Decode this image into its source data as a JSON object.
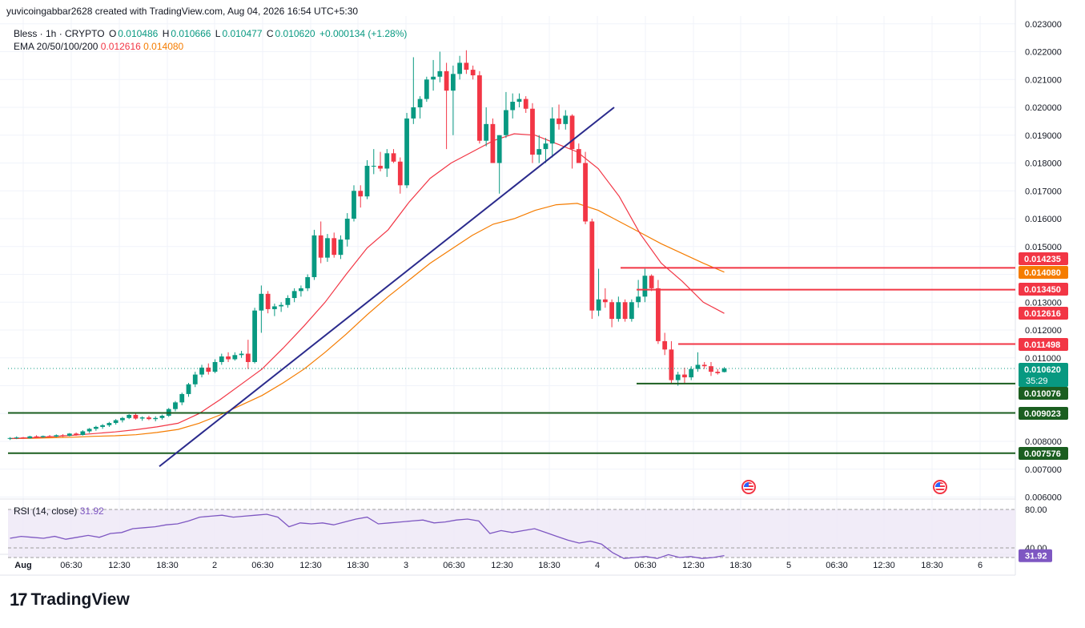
{
  "header": {
    "credit": "yuvicoingabbar2628 created with TradingView.com, Aug 04, 2026 16:54 UTC+5:30",
    "symbol": "Bless · 1h · CRYPTO",
    "o_label": "O",
    "o_value": "0.010486",
    "h_label": "H",
    "h_value": "0.010666",
    "l_label": "L",
    "l_value": "0.010477",
    "c_label": "C",
    "c_value": "0.010620",
    "change": "+0.000134 (+1.28%)",
    "ema_label": "EMA 20/50/100/200",
    "ema1": "0.012616",
    "ema2": "0.014080"
  },
  "rsi": {
    "label": "RSI (14, close)",
    "value": "31.92",
    "levels": [
      "80.00",
      "40.00"
    ]
  },
  "footer": {
    "brand": "TradingView",
    "brand_mark": "17"
  },
  "colors": {
    "up": "#089981",
    "down": "#f23645",
    "ema20": "#f23645",
    "ema50": "#f57c00",
    "trend": "#2a2a8c",
    "support": "#1b5e20",
    "resistance": "#f23645",
    "rsi": "#7e57c2"
  },
  "chart_data": {
    "type": "candlestick",
    "ylim": [
      0.006,
      0.023
    ],
    "y_ticks": [
      "0.023000",
      "0.022000",
      "0.021000",
      "0.020000",
      "0.019000",
      "0.018000",
      "0.017000",
      "0.016000",
      "0.015000",
      "0.013000",
      "0.012000",
      "0.011000",
      "0.008000",
      "0.007000",
      "0.006000"
    ],
    "x_ticks": [
      "Aug",
      "06:30",
      "12:30",
      "18:30",
      "2",
      "06:30",
      "12:30",
      "18:30",
      "3",
      "06:30",
      "12:30",
      "18:30",
      "4",
      "06:30",
      "12:30",
      "18:30",
      "5",
      "06:30",
      "12:30",
      "18:30",
      "6"
    ],
    "price_labels": [
      {
        "text": "0.014235",
        "kind": "red"
      },
      {
        "text": "0.014080",
        "kind": "orange"
      },
      {
        "text": "0.013450",
        "kind": "red"
      },
      {
        "text": "0.012616",
        "kind": "red"
      },
      {
        "text": "0.011498",
        "kind": "red"
      },
      {
        "text": "0.010620",
        "kind": "last",
        "sub": "35:29"
      },
      {
        "text": "0.010076",
        "kind": "green"
      },
      {
        "text": "0.009023",
        "kind": "green"
      },
      {
        "text": "0.007576",
        "kind": "green"
      }
    ],
    "horizontal_levels": [
      {
        "y": 0.014235,
        "x_start": "Aug 4 06:00",
        "color": "resistance"
      },
      {
        "y": 0.01345,
        "x_start": "Aug 4 08:00",
        "color": "resistance"
      },
      {
        "y": 0.011498,
        "x_start": "Aug 4 12:00",
        "color": "resistance"
      },
      {
        "y": 0.010076,
        "x_start": "Aug 4 09:30",
        "color": "support"
      },
      {
        "y": 0.009023,
        "x_start": "Aug 1 00:00",
        "color": "support"
      },
      {
        "y": 0.007576,
        "x_start": "Aug 1 00:00",
        "color": "support"
      }
    ],
    "trendline": {
      "from": {
        "x": "Aug 2 00:00",
        "y": 0.0071
      },
      "to": {
        "x": "Aug 4 01:00",
        "y": 0.02
      }
    },
    "candles": [
      [
        0.0081,
        0.00815,
        0.00805,
        0.00812
      ],
      [
        0.00812,
        0.00818,
        0.00808,
        0.00814
      ],
      [
        0.00814,
        0.00816,
        0.00809,
        0.00811
      ],
      [
        0.00811,
        0.0082,
        0.0081,
        0.00818
      ],
      [
        0.00818,
        0.00822,
        0.00812,
        0.00815
      ],
      [
        0.00815,
        0.00821,
        0.00813,
        0.00819
      ],
      [
        0.00819,
        0.00823,
        0.00815,
        0.00817
      ],
      [
        0.00817,
        0.00825,
        0.00815,
        0.00822
      ],
      [
        0.00822,
        0.00826,
        0.00816,
        0.0082
      ],
      [
        0.0082,
        0.0083,
        0.00818,
        0.00828
      ],
      [
        0.00828,
        0.00832,
        0.0082,
        0.00823
      ],
      [
        0.00823,
        0.0084,
        0.00821,
        0.00836
      ],
      [
        0.00836,
        0.00848,
        0.0083,
        0.00845
      ],
      [
        0.00845,
        0.00856,
        0.00838,
        0.00852
      ],
      [
        0.00852,
        0.00862,
        0.00845,
        0.00858
      ],
      [
        0.00858,
        0.0087,
        0.00852,
        0.00866
      ],
      [
        0.00866,
        0.0088,
        0.0086,
        0.00876
      ],
      [
        0.00876,
        0.00888,
        0.00868,
        0.00884
      ],
      [
        0.00884,
        0.00898,
        0.0088,
        0.00895
      ],
      [
        0.00895,
        0.00904,
        0.00878,
        0.00882
      ],
      [
        0.00882,
        0.0089,
        0.00874,
        0.00886
      ],
      [
        0.00886,
        0.00892,
        0.00876,
        0.0088
      ],
      [
        0.0088,
        0.0089,
        0.00872,
        0.00884
      ],
      [
        0.00884,
        0.00896,
        0.00878,
        0.00892
      ],
      [
        0.00892,
        0.0092,
        0.00888,
        0.00916
      ],
      [
        0.00916,
        0.00945,
        0.00908,
        0.0094
      ],
      [
        0.0094,
        0.00975,
        0.0093,
        0.0097
      ],
      [
        0.0097,
        0.0101,
        0.0096,
        0.01005
      ],
      [
        0.01005,
        0.0105,
        0.00995,
        0.0104
      ],
      [
        0.0104,
        0.01075,
        0.0103,
        0.01065
      ],
      [
        0.01065,
        0.0108,
        0.0104,
        0.0105
      ],
      [
        0.0105,
        0.01095,
        0.01045,
        0.01085
      ],
      [
        0.01085,
        0.01115,
        0.01075,
        0.01105
      ],
      [
        0.01105,
        0.0112,
        0.01085,
        0.01095
      ],
      [
        0.01095,
        0.0112,
        0.0109,
        0.0111
      ],
      [
        0.0111,
        0.01125,
        0.011,
        0.01115
      ],
      [
        0.01115,
        0.01165,
        0.0106,
        0.01085
      ],
      [
        0.01085,
        0.0128,
        0.0108,
        0.0127
      ],
      [
        0.0127,
        0.0136,
        0.0119,
        0.0133
      ],
      [
        0.0133,
        0.0134,
        0.0126,
        0.01275
      ],
      [
        0.01275,
        0.01295,
        0.0125,
        0.01285
      ],
      [
        0.01285,
        0.013,
        0.01265,
        0.0129
      ],
      [
        0.0129,
        0.01325,
        0.0128,
        0.01315
      ],
      [
        0.01315,
        0.0135,
        0.013,
        0.0134
      ],
      [
        0.0134,
        0.0136,
        0.0132,
        0.0135
      ],
      [
        0.0135,
        0.014,
        0.0134,
        0.0139
      ],
      [
        0.0139,
        0.0156,
        0.0138,
        0.0154
      ],
      [
        0.0154,
        0.0159,
        0.0144,
        0.0146
      ],
      [
        0.0146,
        0.01545,
        0.01445,
        0.0153
      ],
      [
        0.0153,
        0.0155,
        0.0146,
        0.0147
      ],
      [
        0.0147,
        0.0154,
        0.01455,
        0.01525
      ],
      [
        0.01525,
        0.0162,
        0.015,
        0.016
      ],
      [
        0.016,
        0.0172,
        0.0159,
        0.017
      ],
      [
        0.017,
        0.0172,
        0.0164,
        0.0168
      ],
      [
        0.0168,
        0.0181,
        0.0167,
        0.0179
      ],
      [
        0.0179,
        0.0185,
        0.0176,
        0.0179
      ],
      [
        0.0179,
        0.0184,
        0.0177,
        0.0178
      ],
      [
        0.0178,
        0.0185,
        0.0175,
        0.01835
      ],
      [
        0.01835,
        0.0185,
        0.018,
        0.01805
      ],
      [
        0.01805,
        0.0182,
        0.0169,
        0.0172
      ],
      [
        0.0172,
        0.0198,
        0.0171,
        0.0196
      ],
      [
        0.0196,
        0.0218,
        0.0194,
        0.02
      ],
      [
        0.02,
        0.0204,
        0.0196,
        0.0203
      ],
      [
        0.0203,
        0.0211,
        0.0202,
        0.021
      ],
      [
        0.021,
        0.0217,
        0.0206,
        0.0211
      ],
      [
        0.0211,
        0.022,
        0.0209,
        0.0213
      ],
      [
        0.0213,
        0.0216,
        0.0185,
        0.0206
      ],
      [
        0.0206,
        0.0215,
        0.019,
        0.0212
      ],
      [
        0.0212,
        0.02185,
        0.021,
        0.0216
      ],
      [
        0.0216,
        0.02205,
        0.0212,
        0.02135
      ],
      [
        0.02135,
        0.0215,
        0.021,
        0.02115
      ],
      [
        0.02115,
        0.0213,
        0.0187,
        0.0188
      ],
      [
        0.0188,
        0.02,
        0.0186,
        0.0194
      ],
      [
        0.0194,
        0.0196,
        0.018,
        0.018
      ],
      [
        0.018,
        0.019,
        0.0169,
        0.019
      ],
      [
        0.019,
        0.02055,
        0.0189,
        0.0199
      ],
      [
        0.0199,
        0.0205,
        0.0196,
        0.0202
      ],
      [
        0.0202,
        0.0205,
        0.02,
        0.0203
      ],
      [
        0.0203,
        0.0204,
        0.0198,
        0.01995
      ],
      [
        0.01995,
        0.02015,
        0.018,
        0.0183
      ],
      [
        0.0183,
        0.019,
        0.018,
        0.0185
      ],
      [
        0.0185,
        0.0189,
        0.018,
        0.0187
      ],
      [
        0.0187,
        0.02,
        0.0182,
        0.0196
      ],
      [
        0.0196,
        0.0201,
        0.0192,
        0.0194
      ],
      [
        0.0194,
        0.0199,
        0.0192,
        0.0197
      ],
      [
        0.0197,
        0.01975,
        0.0178,
        0.0185
      ],
      [
        0.0185,
        0.0187,
        0.018,
        0.018
      ],
      [
        0.018,
        0.0184,
        0.0158,
        0.0159
      ],
      [
        0.0159,
        0.016,
        0.0124,
        0.0127
      ],
      [
        0.0127,
        0.0142,
        0.0125,
        0.0131
      ],
      [
        0.0131,
        0.0135,
        0.0128,
        0.013
      ],
      [
        0.013,
        0.0131,
        0.0121,
        0.0124
      ],
      [
        0.0124,
        0.0132,
        0.0123,
        0.013
      ],
      [
        0.013,
        0.0131,
        0.0123,
        0.0124
      ],
      [
        0.0124,
        0.0131,
        0.0123,
        0.013
      ],
      [
        0.013,
        0.0138,
        0.0128,
        0.0132
      ],
      [
        0.0132,
        0.0142,
        0.013,
        0.01395
      ],
      [
        0.01395,
        0.014,
        0.0134,
        0.0135
      ],
      [
        0.0135,
        0.0138,
        0.0115,
        0.0116
      ],
      [
        0.0116,
        0.0119,
        0.0111,
        0.0113
      ],
      [
        0.0113,
        0.0116,
        0.0101,
        0.0102
      ],
      [
        0.0102,
        0.0105,
        0.01,
        0.0104
      ],
      [
        0.0104,
        0.01065,
        0.0101,
        0.0103
      ],
      [
        0.0103,
        0.0107,
        0.0102,
        0.0106
      ],
      [
        0.0106,
        0.0112,
        0.0105,
        0.01075
      ],
      [
        0.01075,
        0.01085,
        0.0106,
        0.0107
      ],
      [
        0.0107,
        0.01085,
        0.01035,
        0.0105
      ],
      [
        0.0105,
        0.0106,
        0.0104,
        0.01045
      ],
      [
        0.01049,
        0.01067,
        0.01048,
        0.01062
      ]
    ],
    "ema20": [
      0.0081,
      0.00813,
      0.00817,
      0.00822,
      0.00828,
      0.00834,
      0.00842,
      0.00852,
      0.00865,
      0.009,
      0.0095,
      0.01005,
      0.0106,
      0.01135,
      0.01215,
      0.013,
      0.014,
      0.01495,
      0.0156,
      0.0166,
      0.01745,
      0.018,
      0.0184,
      0.0188,
      0.01905,
      0.019,
      0.0187,
      0.0184,
      0.0178,
      0.0168,
      0.01545,
      0.0144,
      0.01375,
      0.013,
      0.0126
    ],
    "ema50": [
      0.0081,
      0.00811,
      0.00813,
      0.00815,
      0.00818,
      0.0082,
      0.00824,
      0.00832,
      0.00843,
      0.00865,
      0.00895,
      0.0093,
      0.00965,
      0.0101,
      0.0106,
      0.0112,
      0.01185,
      0.01255,
      0.0132,
      0.0138,
      0.0144,
      0.0149,
      0.0154,
      0.0158,
      0.016,
      0.0163,
      0.0165,
      0.01655,
      0.0163,
      0.0159,
      0.0155,
      0.0151,
      0.01475,
      0.0144,
      0.01408
    ],
    "rsi_values": [
      50,
      52,
      51,
      50,
      52,
      49,
      51,
      53,
      51,
      55,
      56,
      60,
      61,
      62,
      64,
      65,
      68,
      72,
      73,
      74,
      72,
      73,
      74,
      75,
      72,
      62,
      66,
      65,
      66,
      64,
      67,
      70,
      72,
      65,
      66,
      67,
      68,
      69,
      66,
      67,
      69,
      70,
      68,
      55,
      58,
      56,
      58,
      60,
      56,
      52,
      48,
      45,
      47,
      44,
      35,
      29,
      30,
      31,
      29,
      33,
      30,
      31,
      29,
      30,
      32
    ]
  }
}
